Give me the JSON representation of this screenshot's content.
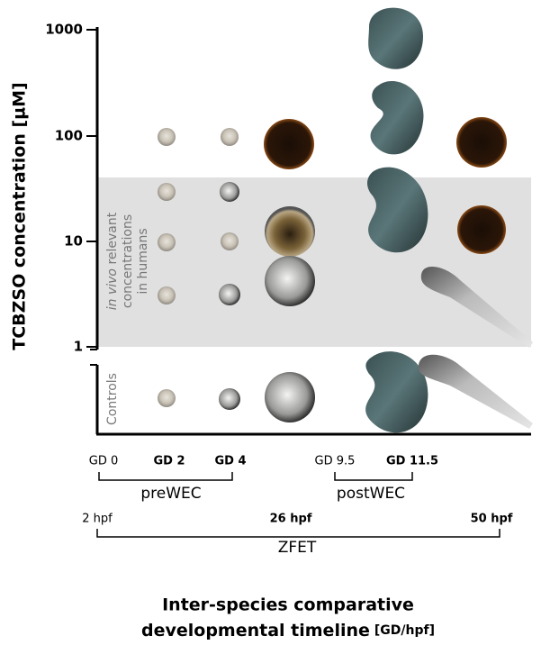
{
  "y_axis": {
    "title": "TCBZSO concentration [µM]",
    "ticks": [
      "1000",
      "100",
      "10",
      "1"
    ]
  },
  "band_label": {
    "italic": "in vivo",
    "line1_rest": " relevant",
    "line2": "concentrations",
    "line3": "in humans"
  },
  "controls_label": "Controls",
  "pre_wec": {
    "points": [
      "GD 0",
      "GD 2",
      "GD 4"
    ],
    "name": "preWEC"
  },
  "post_wec": {
    "points": [
      "GD 9.5",
      "GD 11.5"
    ],
    "name": "postWEC"
  },
  "zfet": {
    "points": [
      "2 hpf",
      "26 hpf",
      "50 hpf"
    ],
    "name": "ZFET"
  },
  "x_axis_title": {
    "line1": "Inter-species comparative",
    "line2": "developmental timeline",
    "unit": "[GD/hpf]"
  }
}
